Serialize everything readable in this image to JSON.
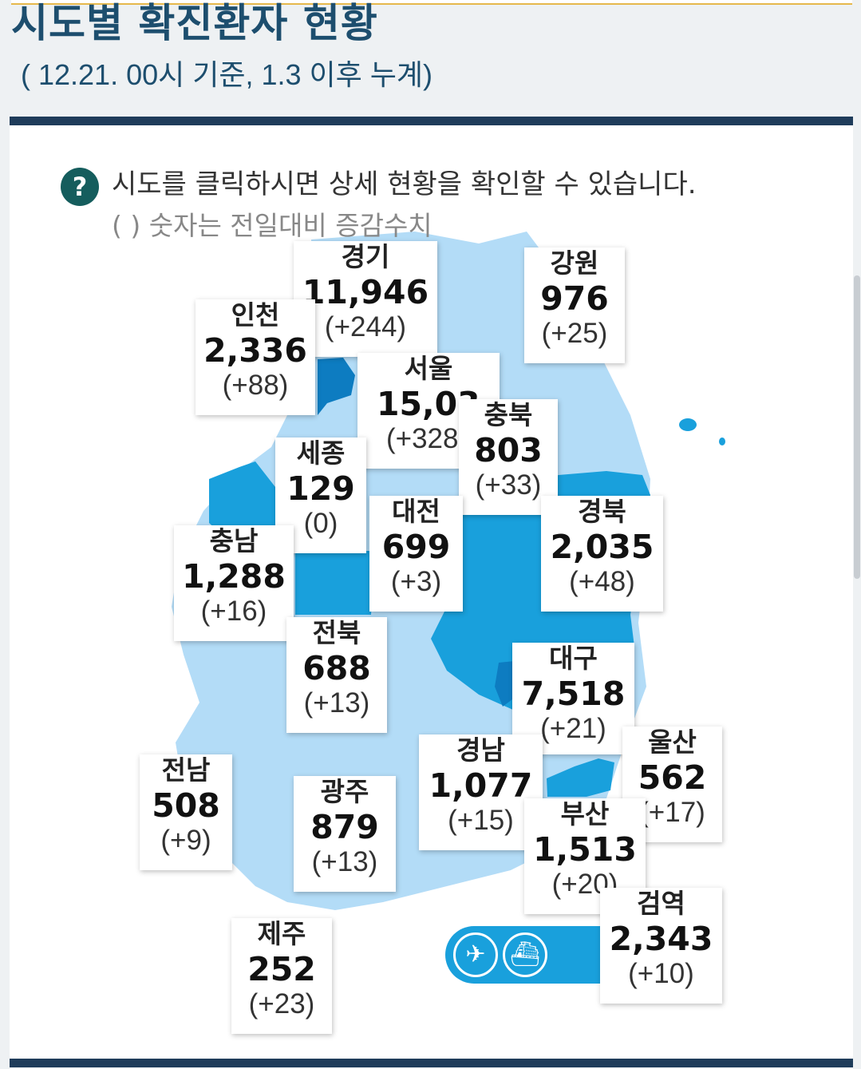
{
  "title": "시도별 확진환자 현황",
  "subtitle": "( 12.21. 00시 기준, 1.3 이후 누계)",
  "help": {
    "icon_char": "?",
    "text": "시도를 클릭하시면 상세 현황을 확인할 수 있습니다.",
    "note": "( ) 숫자는 전일대비 증감수치"
  },
  "regions": {
    "gyeonggi": {
      "name": "경기",
      "count": "11,946",
      "diff": "(+244)"
    },
    "gangwon": {
      "name": "강원",
      "count": "976",
      "diff": "(+25)"
    },
    "incheon": {
      "name": "인천",
      "count": "2,336",
      "diff": "(+88)"
    },
    "seoul": {
      "name": "서울",
      "count": "15,03",
      "diff": "(+328"
    },
    "chungbuk": {
      "name": "충북",
      "count": "803",
      "diff": "(+33)"
    },
    "sejong": {
      "name": "세종",
      "count": "129",
      "diff": "(0)"
    },
    "daejeon": {
      "name": "대전",
      "count": "699",
      "diff": "(+3)"
    },
    "gyeongbuk": {
      "name": "경북",
      "count": "2,035",
      "diff": "(+48)"
    },
    "chungnam": {
      "name": "충남",
      "count": "1,288",
      "diff": "(+16)"
    },
    "jeonbuk": {
      "name": "전북",
      "count": "688",
      "diff": "(+13)"
    },
    "daegu": {
      "name": "대구",
      "count": "7,518",
      "diff": "(+21)"
    },
    "ulsan": {
      "name": "울산",
      "count": "562",
      "diff": "(+17)"
    },
    "gyeongnam": {
      "name": "경남",
      "count": "1,077",
      "diff": "(+15)"
    },
    "jeonnam": {
      "name": "전남",
      "count": "508",
      "diff": "(+9)"
    },
    "gwangju": {
      "name": "광주",
      "count": "879",
      "diff": "(+13)"
    },
    "busan": {
      "name": "부산",
      "count": "1,513",
      "diff": "(+20)"
    },
    "quarantine": {
      "name": "검역",
      "count": "2,343",
      "diff": "(+10)"
    },
    "jeju": {
      "name": "제주",
      "count": "252",
      "diff": "(+23)"
    }
  },
  "icons": {
    "airplane": "airplane-icon",
    "ship": "ship-icon"
  },
  "colors": {
    "title": "#1d4e6e",
    "bar": "#1f3c5a",
    "map_light": "#b3dcf7",
    "map_mid": "#19a0dc",
    "map_dark": "#0d7cc1",
    "help_icon": "#155d5d"
  }
}
